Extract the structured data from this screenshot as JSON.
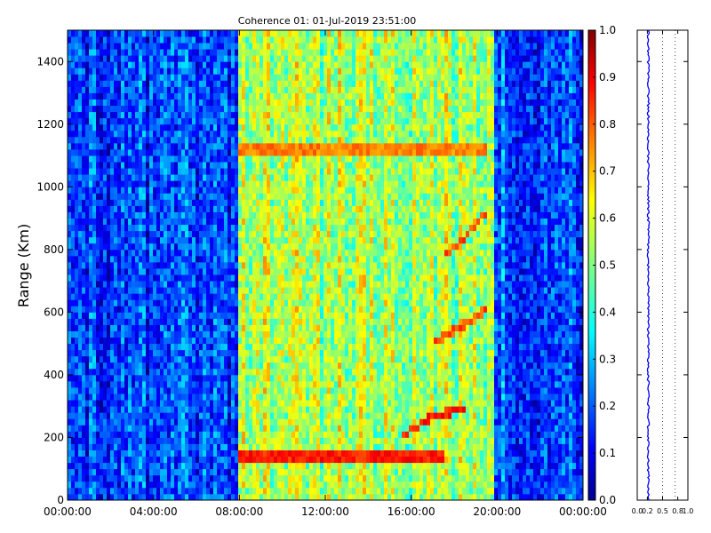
{
  "chart_data": [
    {
      "type": "heatmap",
      "title": "Coherence 01: 01-Jul-2019 23:51:00",
      "xlabel": "",
      "ylabel": "Range (Km)",
      "x_ticks": [
        "00:00:00",
        "04:00:00",
        "08:00:00",
        "12:00:00",
        "16:00:00",
        "20:00:00",
        "00:00:00"
      ],
      "x_range_hours": [
        0,
        24
      ],
      "y_ticks": [
        0,
        200,
        400,
        600,
        800,
        1000,
        1200,
        1400
      ],
      "ylim": [
        0,
        1500
      ],
      "colormap": "jet",
      "colorbar": {
        "ticks": [
          "0.0",
          "0.1",
          "0.2",
          "0.3",
          "0.4",
          "0.5",
          "0.6",
          "0.7",
          "0.8",
          "0.9",
          "1.0"
        ],
        "range": [
          0,
          1
        ]
      },
      "time_segments": [
        {
          "start_hour": 0.0,
          "end_hour": 8.0,
          "mean_coherence": 0.18
        },
        {
          "start_hour": 8.0,
          "end_hour": 19.8,
          "mean_coherence": 0.55
        },
        {
          "start_hour": 19.8,
          "end_hour": 24.0,
          "mean_coherence": 0.22
        }
      ],
      "features": [
        {
          "label": "strong band",
          "start_hour": 8.0,
          "end_hour": 17.5,
          "range_km": 140,
          "coherence": 0.85
        },
        {
          "label": "band",
          "start_hour": 8.0,
          "end_hour": 19.5,
          "range_km": 1120,
          "coherence": 0.75
        },
        {
          "label": "rising trace",
          "points": [
            [
              15.5,
              200
            ],
            [
              17.0,
              270
            ],
            [
              18.5,
              290
            ]
          ],
          "coherence": 0.85
        },
        {
          "label": "rising trace",
          "points": [
            [
              17.0,
              500
            ],
            [
              18.5,
              560
            ],
            [
              19.5,
              610
            ]
          ],
          "coherence": 0.8
        },
        {
          "label": "rising trace",
          "points": [
            [
              17.5,
              780
            ],
            [
              18.5,
              840
            ],
            [
              19.5,
              920
            ]
          ],
          "coherence": 0.8
        }
      ],
      "grid": false
    },
    {
      "type": "line",
      "title": "",
      "xlabel": "",
      "ylabel": "",
      "x_ticks": [
        "0.0",
        "0.2",
        "0.5",
        "0.8",
        "1.0"
      ],
      "xlim": [
        0,
        1
      ],
      "ylim": [
        0,
        1500
      ],
      "vertical_reference_lines": [
        0.5,
        0.75
      ],
      "series": [
        {
          "color": "#0000ff",
          "mean_coherence": 0.22,
          "spread": 0.02,
          "range_km": [
            0,
            1500
          ]
        }
      ]
    }
  ]
}
